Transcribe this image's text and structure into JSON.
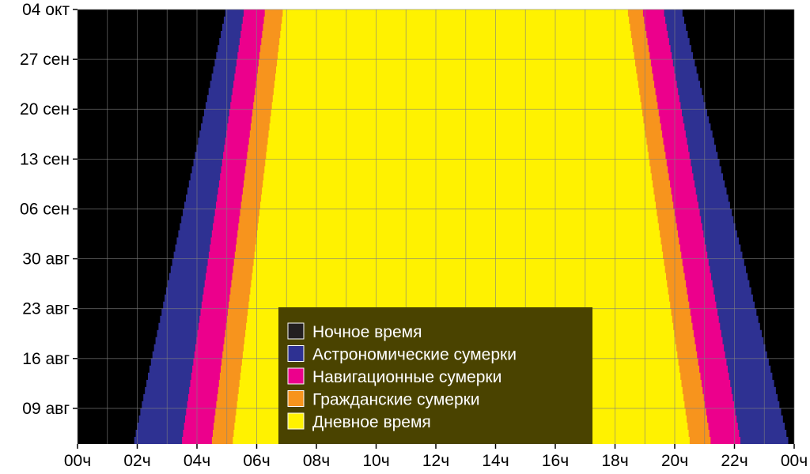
{
  "chart_data": {
    "type": "area",
    "x_axis": {
      "unit": "hours",
      "range": [
        0,
        24
      ],
      "ticks": [
        {
          "value": 0,
          "label": "00ч"
        },
        {
          "value": 2,
          "label": "02ч"
        },
        {
          "value": 4,
          "label": "04ч"
        },
        {
          "value": 6,
          "label": "06ч"
        },
        {
          "value": 8,
          "label": "08ч"
        },
        {
          "value": 10,
          "label": "10ч"
        },
        {
          "value": 12,
          "label": "12ч"
        },
        {
          "value": 14,
          "label": "14ч"
        },
        {
          "value": 16,
          "label": "16ч"
        },
        {
          "value": 18,
          "label": "18ч"
        },
        {
          "value": 20,
          "label": "20ч"
        },
        {
          "value": 22,
          "label": "22ч"
        },
        {
          "value": 24,
          "label": "00ч"
        }
      ]
    },
    "y_axis": {
      "range": [
        "2024-08-04",
        "2024-10-04"
      ],
      "ticks": [
        {
          "date": "2024-08-09",
          "label": "09 авг"
        },
        {
          "date": "2024-08-16",
          "label": "16 авг"
        },
        {
          "date": "2024-08-23",
          "label": "23 авг"
        },
        {
          "date": "2024-08-30",
          "label": "30 авг"
        },
        {
          "date": "2024-09-06",
          "label": "06 сен"
        },
        {
          "date": "2024-09-13",
          "label": "13 сен"
        },
        {
          "date": "2024-09-20",
          "label": "20 сен"
        },
        {
          "date": "2024-09-27",
          "label": "27 сен"
        },
        {
          "date": "2024-10-04",
          "label": "04 окт"
        }
      ]
    },
    "grid": true,
    "legend_position": "bottom-center",
    "background_color": "#000000",
    "series": [
      {
        "name": "Ночное время",
        "color": "#231f20"
      },
      {
        "name": "Астрономические сумерки",
        "color": "#2e3192"
      },
      {
        "name": "Навигационные сумерки",
        "color": "#ec008c"
      },
      {
        "name": "Гражданские сумерки",
        "color": "#f7941d"
      },
      {
        "name": "Дневное время",
        "color": "#fff200"
      }
    ],
    "bands": [
      {
        "date": "2024-08-04",
        "astro_start": 1.9,
        "nautical_start": 3.5,
        "civil_start": 4.5,
        "sunrise": 5.2,
        "sunset": 20.5,
        "civil_end": 21.2,
        "nautical_end": 22.2,
        "astro_end": 23.8
      },
      {
        "date": "2024-10-04",
        "astro_start": 5.0,
        "nautical_start": 5.6,
        "civil_start": 6.3,
        "sunrise": 6.9,
        "sunset": 18.4,
        "civil_end": 18.9,
        "nautical_end": 19.6,
        "astro_end": 20.2
      }
    ]
  }
}
